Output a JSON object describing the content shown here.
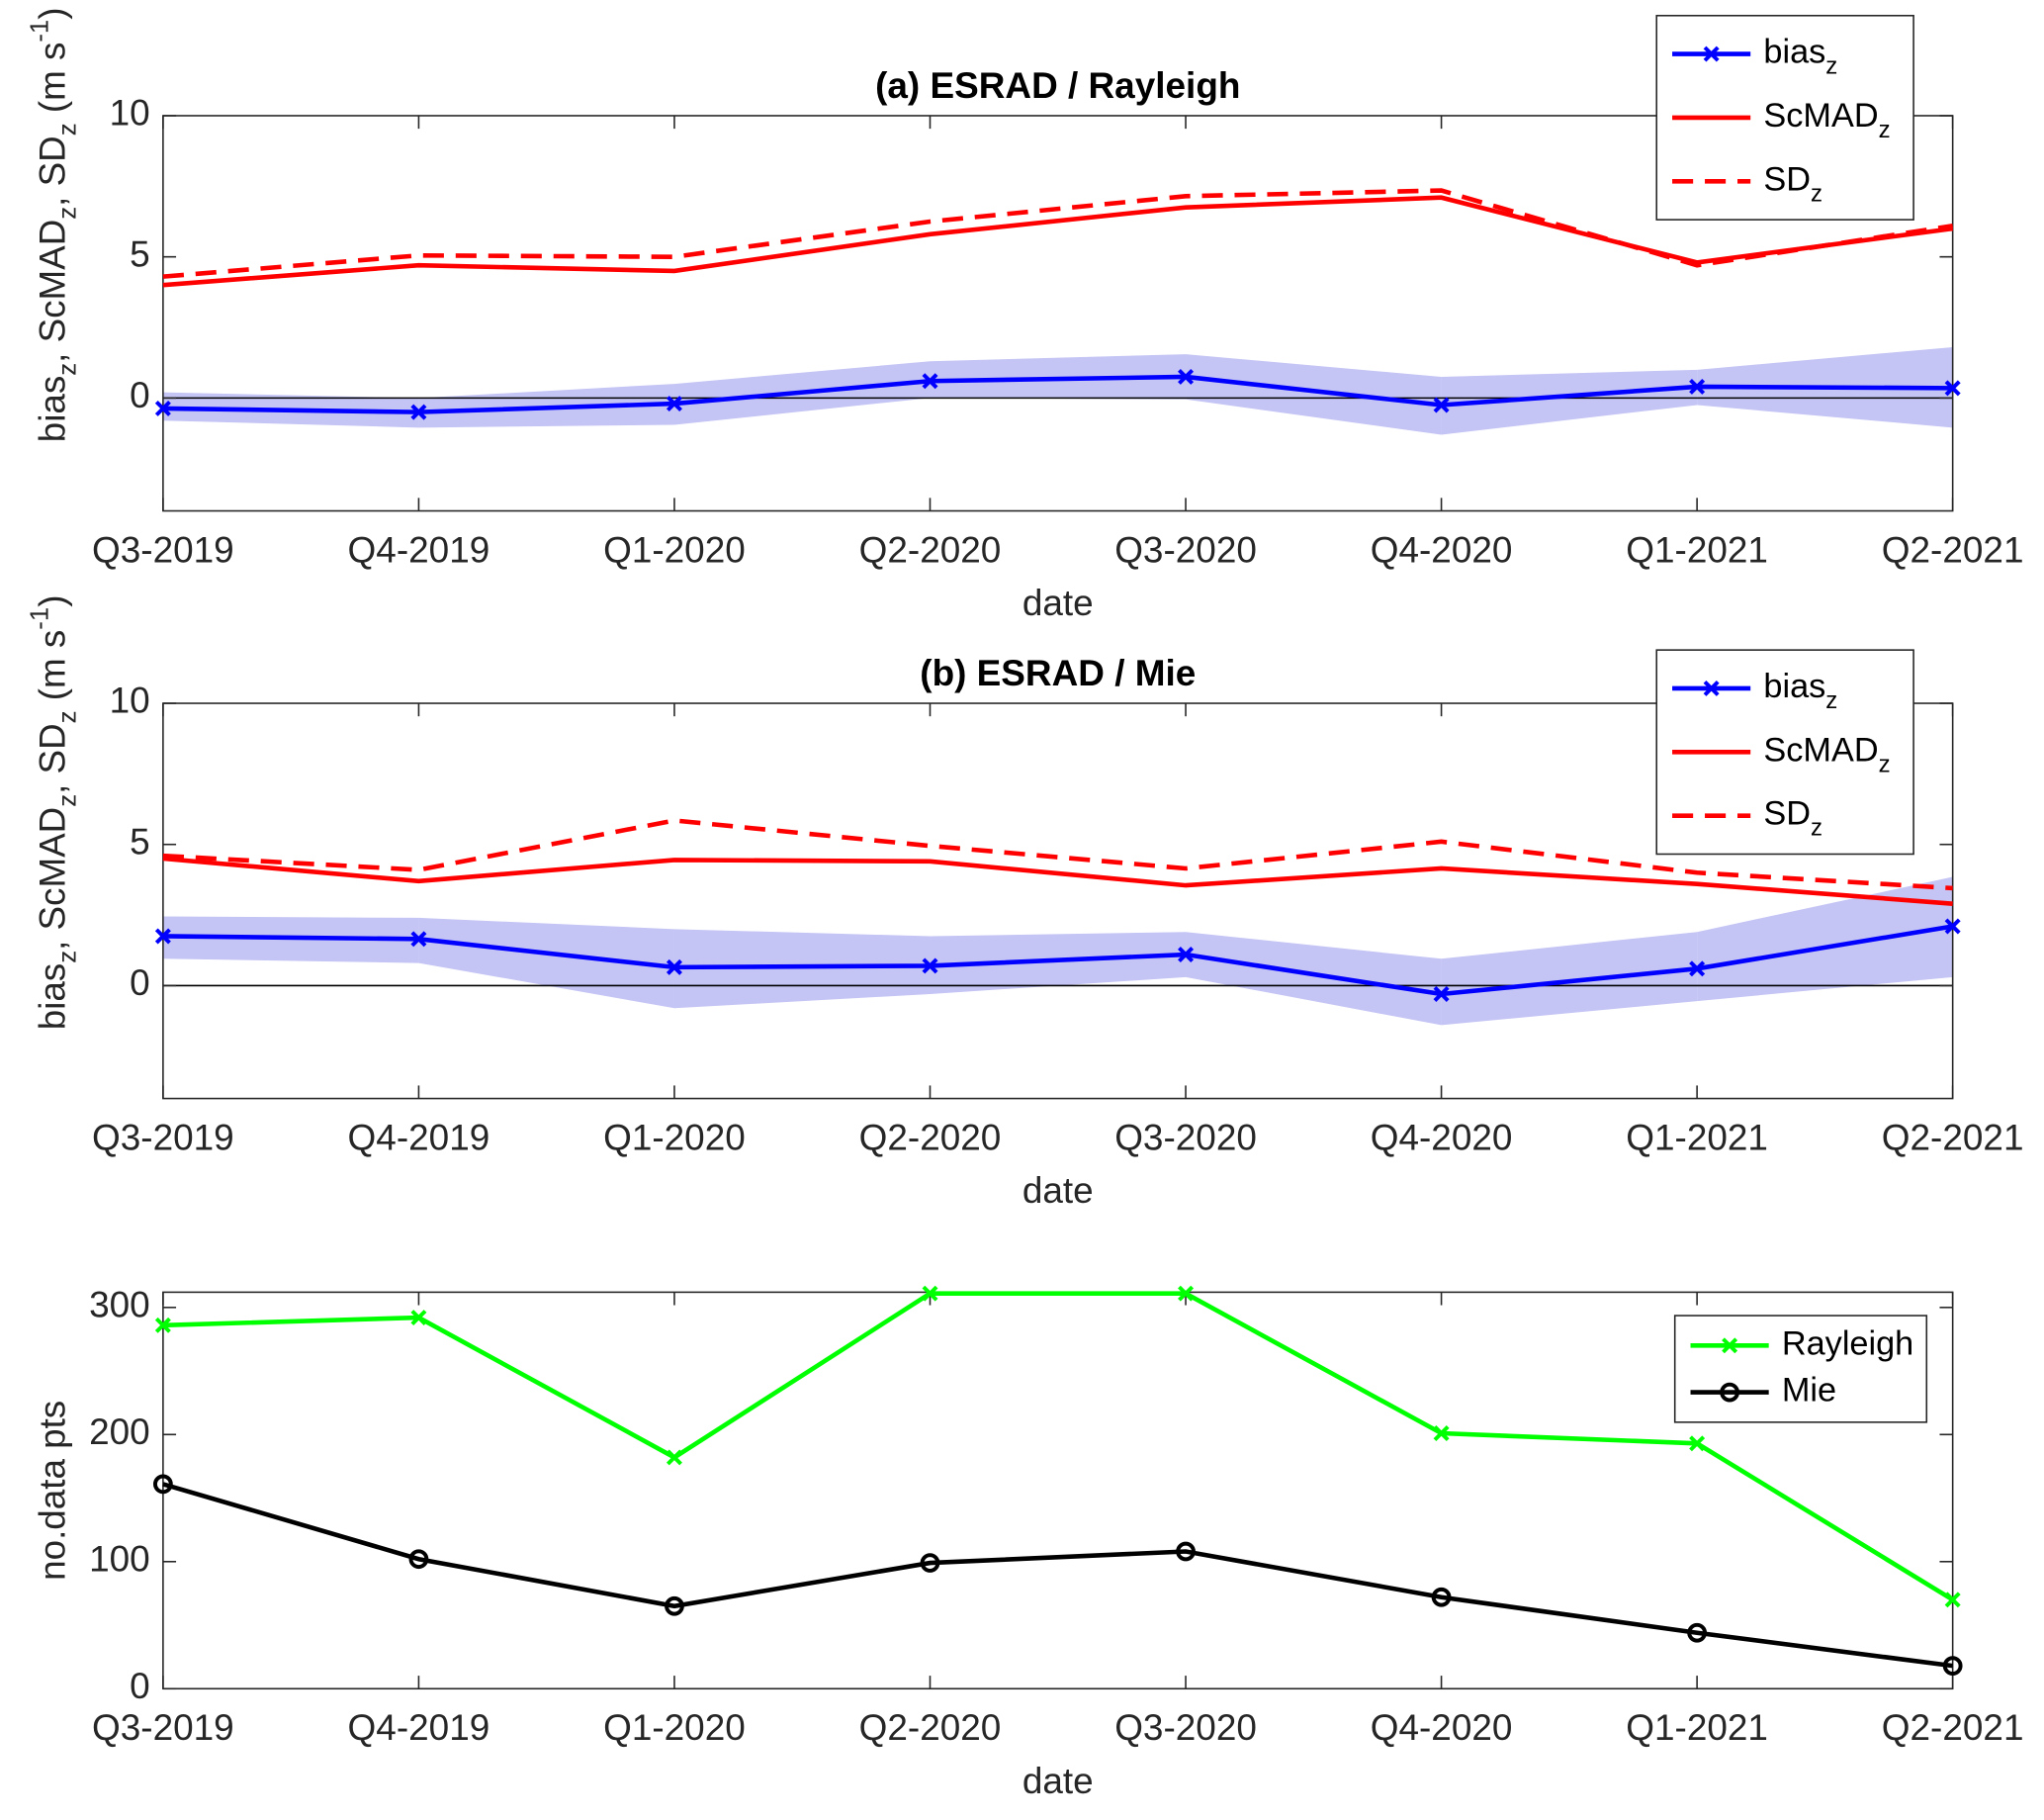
{
  "chart_data": [
    {
      "type": "line",
      "title": "(a) ESRAD / Rayleigh",
      "xlabel": "date",
      "ylabel": [
        {
          "text": "bias"
        },
        {
          "text": "z",
          "shift": "sub"
        },
        {
          "text": ", ScMAD"
        },
        {
          "text": "z",
          "shift": "sub"
        },
        {
          "text": ", SD"
        },
        {
          "text": "z",
          "shift": "sub"
        },
        {
          "text": " (m s"
        },
        {
          "text": "-1",
          "shift": "super"
        },
        {
          "text": ")"
        }
      ],
      "categories": [
        "Q3-2019",
        "Q4-2019",
        "Q1-2020",
        "Q2-2020",
        "Q3-2020",
        "Q4-2020",
        "Q1-2021",
        "Q2-2021"
      ],
      "ylim": [
        -4,
        10
      ],
      "yticks": [
        0,
        5,
        10
      ],
      "zero_line": true,
      "legend": "northeast",
      "band": {
        "color": "#c4c4f5",
        "lower": [
          -0.8,
          -1.05,
          -0.95,
          0,
          -0.05,
          -1.3,
          -0.25,
          -1.05
        ],
        "upper": [
          0.2,
          0.0,
          0.5,
          1.3,
          1.55,
          0.75,
          1.0,
          1.8
        ]
      },
      "series": [
        {
          "name": [
            {
              "text": "bias"
            },
            {
              "text": "z",
              "shift": "sub"
            }
          ],
          "color": "#0000ff",
          "marker": "x",
          "values": [
            -0.37,
            -0.5,
            -0.2,
            0.6,
            0.75,
            -0.25,
            0.4,
            0.35
          ]
        },
        {
          "name": [
            {
              "text": "ScMAD"
            },
            {
              "text": "z",
              "shift": "sub"
            }
          ],
          "color": "#ff0000",
          "values": [
            4.0,
            4.7,
            4.5,
            5.8,
            6.75,
            7.1,
            4.8,
            6.0
          ]
        },
        {
          "name": [
            {
              "text": "SD"
            },
            {
              "text": "z",
              "shift": "sub"
            }
          ],
          "color": "#ff0000",
          "dash": true,
          "values": [
            4.3,
            5.05,
            5.0,
            6.25,
            7.15,
            7.35,
            4.7,
            6.1
          ]
        }
      ]
    },
    {
      "type": "line",
      "title": "(b) ESRAD / Mie",
      "xlabel": "date",
      "ylabel": [
        {
          "text": "bias"
        },
        {
          "text": "z",
          "shift": "sub"
        },
        {
          "text": ", ScMAD"
        },
        {
          "text": "z",
          "shift": "sub"
        },
        {
          "text": ", SD"
        },
        {
          "text": "z",
          "shift": "sub"
        },
        {
          "text": " (m s"
        },
        {
          "text": "-1",
          "shift": "super"
        },
        {
          "text": ")"
        }
      ],
      "categories": [
        "Q3-2019",
        "Q4-2019",
        "Q1-2020",
        "Q2-2020",
        "Q3-2020",
        "Q4-2020",
        "Q1-2021",
        "Q2-2021"
      ],
      "ylim": [
        -4,
        10
      ],
      "yticks": [
        0,
        5,
        10
      ],
      "zero_line": true,
      "legend": "northeast",
      "band": {
        "color": "#c4c4f5",
        "lower": [
          0.95,
          0.8,
          -0.8,
          -0.3,
          0.3,
          -1.4,
          -0.55,
          0.3
        ],
        "upper": [
          2.45,
          2.4,
          2.0,
          1.75,
          1.9,
          0.95,
          1.9,
          3.85
        ]
      },
      "series": [
        {
          "name": [
            {
              "text": "bias"
            },
            {
              "text": "z",
              "shift": "sub"
            }
          ],
          "color": "#0000ff",
          "marker": "x",
          "values": [
            1.75,
            1.65,
            0.65,
            0.7,
            1.1,
            -0.3,
            0.6,
            2.1
          ]
        },
        {
          "name": [
            {
              "text": "ScMAD"
            },
            {
              "text": "z",
              "shift": "sub"
            }
          ],
          "color": "#ff0000",
          "values": [
            4.5,
            3.7,
            4.45,
            4.4,
            3.55,
            4.15,
            3.6,
            2.9
          ]
        },
        {
          "name": [
            {
              "text": "SD"
            },
            {
              "text": "z",
              "shift": "sub"
            }
          ],
          "color": "#ff0000",
          "dash": true,
          "values": [
            4.6,
            4.1,
            5.85,
            4.95,
            4.15,
            5.1,
            4.0,
            3.45
          ]
        }
      ]
    },
    {
      "type": "line",
      "xlabel": "date",
      "ylabel": [
        {
          "text": "no.data pts"
        }
      ],
      "categories": [
        "Q3-2019",
        "Q4-2019",
        "Q1-2020",
        "Q2-2020",
        "Q3-2020",
        "Q4-2020",
        "Q1-2021",
        "Q2-2021"
      ],
      "ylim": [
        0,
        312
      ],
      "yticks": [
        0,
        100,
        200,
        300
      ],
      "legend": "northeast",
      "series": [
        {
          "name": [
            {
              "text": "Rayleigh"
            }
          ],
          "color": "#00ff00",
          "marker": "x",
          "values": [
            286,
            292,
            182,
            311,
            311,
            201,
            193,
            70
          ]
        },
        {
          "name": [
            {
              "text": "Mie"
            }
          ],
          "color": "#000000",
          "marker": "o",
          "values": [
            161,
            102,
            65,
            99,
            108,
            72,
            44,
            18
          ]
        }
      ]
    }
  ]
}
